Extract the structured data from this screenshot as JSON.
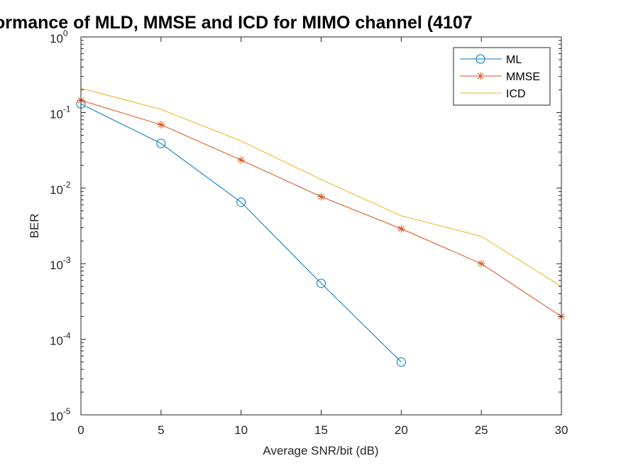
{
  "chart_data": {
    "type": "line",
    "title": "ormance of MLD, MMSE and ICD for MIMO channel (4107",
    "xlabel": "Average SNR/bit (dB)",
    "ylabel": "BER",
    "xlim": [
      0,
      30
    ],
    "ylim": [
      1e-05,
      1
    ],
    "yscale": "log",
    "grid": false,
    "legend_position": "top-right",
    "x_ticks": [
      "0",
      "5",
      "10",
      "15",
      "20",
      "25",
      "30"
    ],
    "y_ticks": [
      {
        "base": "10",
        "exp": "0"
      },
      {
        "base": "10",
        "exp": "-1"
      },
      {
        "base": "10",
        "exp": "-2"
      },
      {
        "base": "10",
        "exp": "-3"
      },
      {
        "base": "10",
        "exp": "-4"
      },
      {
        "base": "10",
        "exp": "-5"
      }
    ],
    "series": [
      {
        "name": "ML",
        "color": "#0072BD",
        "marker": "circle",
        "x": [
          0,
          5,
          10,
          15,
          20
        ],
        "values": [
          0.13,
          0.039,
          0.0065,
          0.00055,
          5e-05
        ]
      },
      {
        "name": "MMSE",
        "color": "#D95319",
        "marker": "asterisk",
        "x": [
          0,
          5,
          10,
          15,
          20,
          25,
          30
        ],
        "values": [
          0.145,
          0.069,
          0.0235,
          0.0077,
          0.0029,
          0.001,
          0.0002
        ]
      },
      {
        "name": "ICD",
        "color": "#EDB120",
        "marker": "none",
        "x": [
          0,
          5,
          10,
          15,
          20,
          25,
          30
        ],
        "values": [
          0.21,
          0.11,
          0.042,
          0.013,
          0.0043,
          0.0023,
          0.0005
        ]
      }
    ]
  }
}
